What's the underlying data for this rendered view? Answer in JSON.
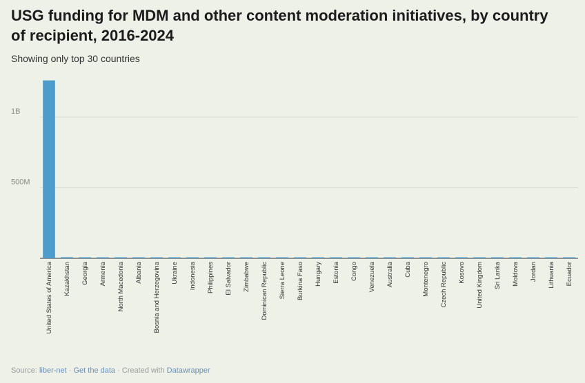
{
  "title": "USG funding for MDM and other content moderation initiatives, by country of recipient, 2016-2024",
  "subtitle": "Showing only top 30 countries",
  "footer": {
    "source_label": "Source: ",
    "source_link": "liber-net",
    "sep1": " · ",
    "data_link": "Get the data",
    "sep2": " · Created with ",
    "tool_link": "Datawrapper"
  },
  "colors": {
    "bar": "#4d9ccb",
    "grid": "#d9ddd3",
    "axis": "#333333",
    "tick_text": "#8a8a8a"
  },
  "chart_data": {
    "type": "bar",
    "title": "USG funding for MDM and other content moderation initiatives, by country of recipient, 2016-2024",
    "subtitle": "Showing only top 30 countries",
    "categories": [
      "United States of America",
      "Kazakhstan",
      "Georgia",
      "Armenia",
      "North Macedonia",
      "Albania",
      "Bosnia and Herzegovina",
      "Ukraine",
      "Indonesia",
      "Philippines",
      "El Salvador",
      "Zimbabwe",
      "Dominican Republic",
      "Sierra Leone",
      "Burkina Faso",
      "Hungary",
      "Estonia",
      "Congo",
      "Venezuela",
      "Australia",
      "Cuba",
      "Montenegro",
      "Czech Republic",
      "Kosovo",
      "United Kingdom",
      "Sri Lanka",
      "Moldova",
      "Jordan",
      "Lithuania",
      "Ecuador"
    ],
    "values": [
      1260000000,
      8000000,
      7500000,
      7000000,
      6500000,
      5000000,
      4500000,
      4000000,
      3000000,
      2500000,
      2200000,
      1800000,
      1500000,
      1300000,
      1100000,
      900000,
      800000,
      700000,
      600000,
      500000,
      450000,
      400000,
      350000,
      300000,
      260000,
      220000,
      200000,
      180000,
      150000,
      120000
    ],
    "yticks": [
      500000000,
      1000000000
    ],
    "ytick_labels": [
      "500M",
      "1B"
    ],
    "ylim": [
      0,
      1400000000
    ],
    "grid": true,
    "xlabel": "",
    "ylabel": ""
  }
}
